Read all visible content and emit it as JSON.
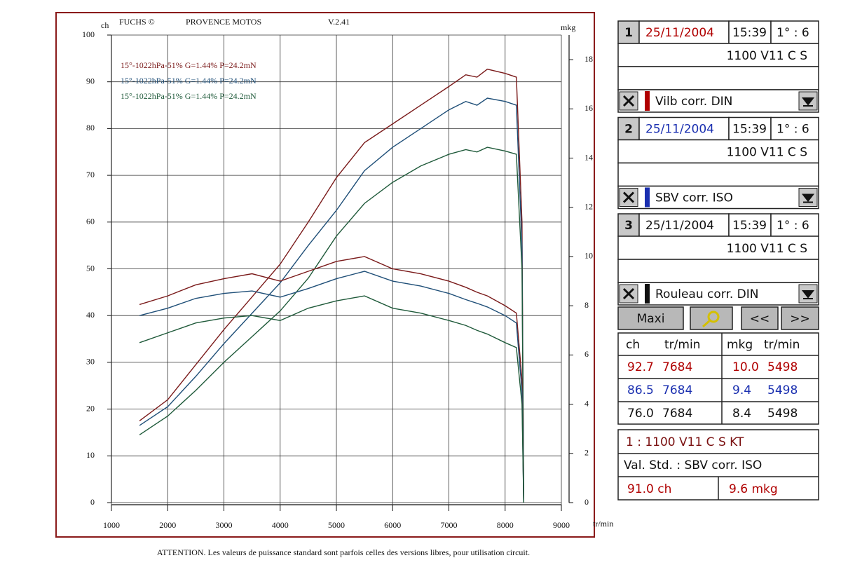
{
  "header": [
    "FUCHS ©",
    "PROVENCE MOTOS",
    "V.2.41"
  ],
  "footer": "ATTENTION. Les valeurs de puissance standard sont parfois celles des versions libres, pour utilisation circuit.",
  "chart_data": {
    "type": "line",
    "y_label": "ch",
    "y2_label": "mkg",
    "x_label": "tr/min",
    "x": [
      1500,
      2000,
      2500,
      3000,
      3500,
      4000,
      4500,
      5000,
      5500,
      6000,
      6500,
      7000,
      7300,
      7500,
      7684,
      8000,
      8200,
      8300,
      8330
    ],
    "xlim": [
      1000,
      9000
    ],
    "xticks": [
      1000,
      2000,
      3000,
      4000,
      5000,
      6000,
      7000,
      8000,
      9000
    ],
    "ylim": [
      0,
      100
    ],
    "yticks": [
      0,
      10,
      20,
      30,
      40,
      50,
      60,
      70,
      80,
      90,
      100
    ],
    "y2lim": [
      0,
      19
    ],
    "y2ticks": [
      0,
      2,
      4,
      6,
      8,
      10,
      12,
      14,
      16,
      18
    ],
    "grid": true,
    "series": [
      {
        "name": "15°-1022hPa-51% G=1.44% P=24.2mN",
        "color": "#7a1a1a",
        "values": [
          17.5,
          22,
          29.5,
          37,
          44,
          51,
          60,
          69.5,
          77,
          81,
          85,
          89,
          91.5,
          91,
          92.7,
          91.8,
          91,
          60,
          0
        ]
      },
      {
        "name": "15°-1022hPa-51% G=1.44% P=24.2mN",
        "color": "#1f4f78",
        "values": [
          16.5,
          20.5,
          27,
          34,
          40.5,
          47,
          55,
          62.5,
          71,
          76,
          80,
          84,
          85.8,
          85,
          86.5,
          85.8,
          85,
          55,
          0
        ]
      },
      {
        "name": "15°-1022hPa-51% G=1.44% P=24.2mN",
        "color": "#1f5a3a",
        "values": [
          14.5,
          18.5,
          24,
          30,
          35.5,
          41,
          48,
          57,
          64,
          68.5,
          72,
          74.5,
          75.5,
          75,
          76,
          75.2,
          74.5,
          50,
          0
        ]
      },
      {
        "color": "#7a1a1a",
        "axis": "y2",
        "values": [
          8.05,
          8.4,
          8.85,
          9.1,
          9.3,
          9.0,
          9.4,
          9.8,
          10.0,
          9.5,
          9.3,
          9.0,
          8.75,
          8.55,
          8.4,
          8.0,
          7.7,
          5,
          0
        ]
      },
      {
        "color": "#1f4f78",
        "axis": "y2",
        "values": [
          7.6,
          7.9,
          8.3,
          8.5,
          8.6,
          8.35,
          8.7,
          9.1,
          9.4,
          9.0,
          8.8,
          8.5,
          8.25,
          8.1,
          7.95,
          7.6,
          7.3,
          4.5,
          0
        ]
      },
      {
        "color": "#1f5a3a",
        "axis": "y2",
        "values": [
          6.5,
          6.9,
          7.3,
          7.5,
          7.6,
          7.4,
          7.9,
          8.2,
          8.4,
          7.9,
          7.7,
          7.4,
          7.2,
          7.0,
          6.85,
          6.5,
          6.3,
          4,
          0
        ]
      }
    ]
  },
  "panel": {
    "runs": [
      {
        "index": "1",
        "date": "25/11/2004",
        "time": "15:39",
        "gear": "1° : 6",
        "model": "1100 V11 C S",
        "correction": "Vilb corr. DIN",
        "color": "#b00000"
      },
      {
        "index": "2",
        "date": "25/11/2004",
        "time": "15:39",
        "gear": "1° : 6",
        "model": "1100 V11 C S",
        "correction": "SBV corr. ISO",
        "color": "#1a2fb0"
      },
      {
        "index": "3",
        "date": "25/11/2004",
        "time": "15:39",
        "gear": "1° : 6",
        "model": "1100 V11 C S",
        "correction": "Rouleau corr. DIN",
        "color": "#111111"
      }
    ],
    "buttons": [
      "Maxi",
      "<<",
      ">>"
    ],
    "table": {
      "header": [
        "ch",
        "tr/min",
        "mkg",
        "tr/min"
      ],
      "rows": [
        [
          "92.7",
          "7684",
          "10.0",
          "5498"
        ],
        [
          "86.5",
          "7684",
          "9.4",
          "5498"
        ],
        [
          "76.0",
          "7684",
          "8.4",
          "5498"
        ]
      ]
    },
    "summary": {
      "model": "1 : 1100 V11 C S  KT",
      "standard": "Val. Std. : SBV corr. ISO",
      "power": "91.0  ch",
      "torque": "9.6  mkg"
    }
  }
}
